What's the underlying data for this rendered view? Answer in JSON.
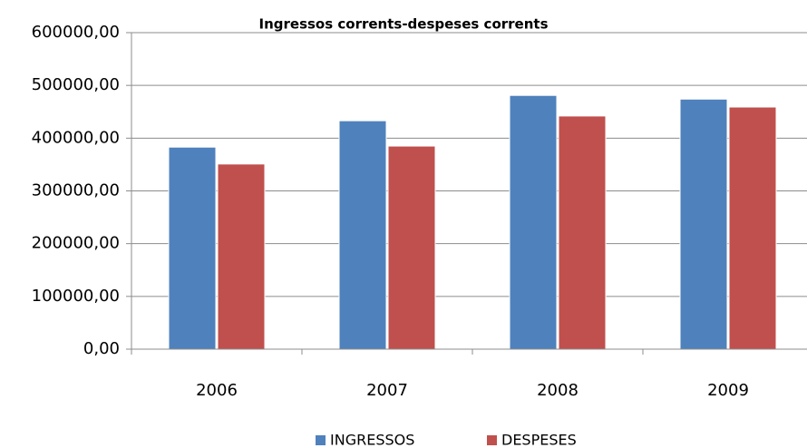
{
  "chart_data": {
    "type": "bar",
    "title": "Ingressos corrents-despeses corrents",
    "categories": [
      "2006",
      "2007",
      "2008",
      "2009"
    ],
    "series": [
      {
        "name": "INGRESSOS",
        "color": "#4f81bd",
        "values": [
          383000,
          433000,
          481000,
          474000
        ]
      },
      {
        "name": "DESPESES",
        "color": "#c0504d",
        "values": [
          351000,
          385000,
          442000,
          459000
        ]
      }
    ],
    "ylim": [
      0,
      600000
    ],
    "yticks": [
      {
        "value": 0,
        "label": "0,00"
      },
      {
        "value": 100000,
        "label": "100000,00"
      },
      {
        "value": 200000,
        "label": "200000,00"
      },
      {
        "value": 300000,
        "label": "300000,00"
      },
      {
        "value": 400000,
        "label": "400000,00"
      },
      {
        "value": 500000,
        "label": "500000,00"
      },
      {
        "value": 600000,
        "label": "600000,00"
      }
    ],
    "grid": true,
    "legend": "bottom"
  }
}
